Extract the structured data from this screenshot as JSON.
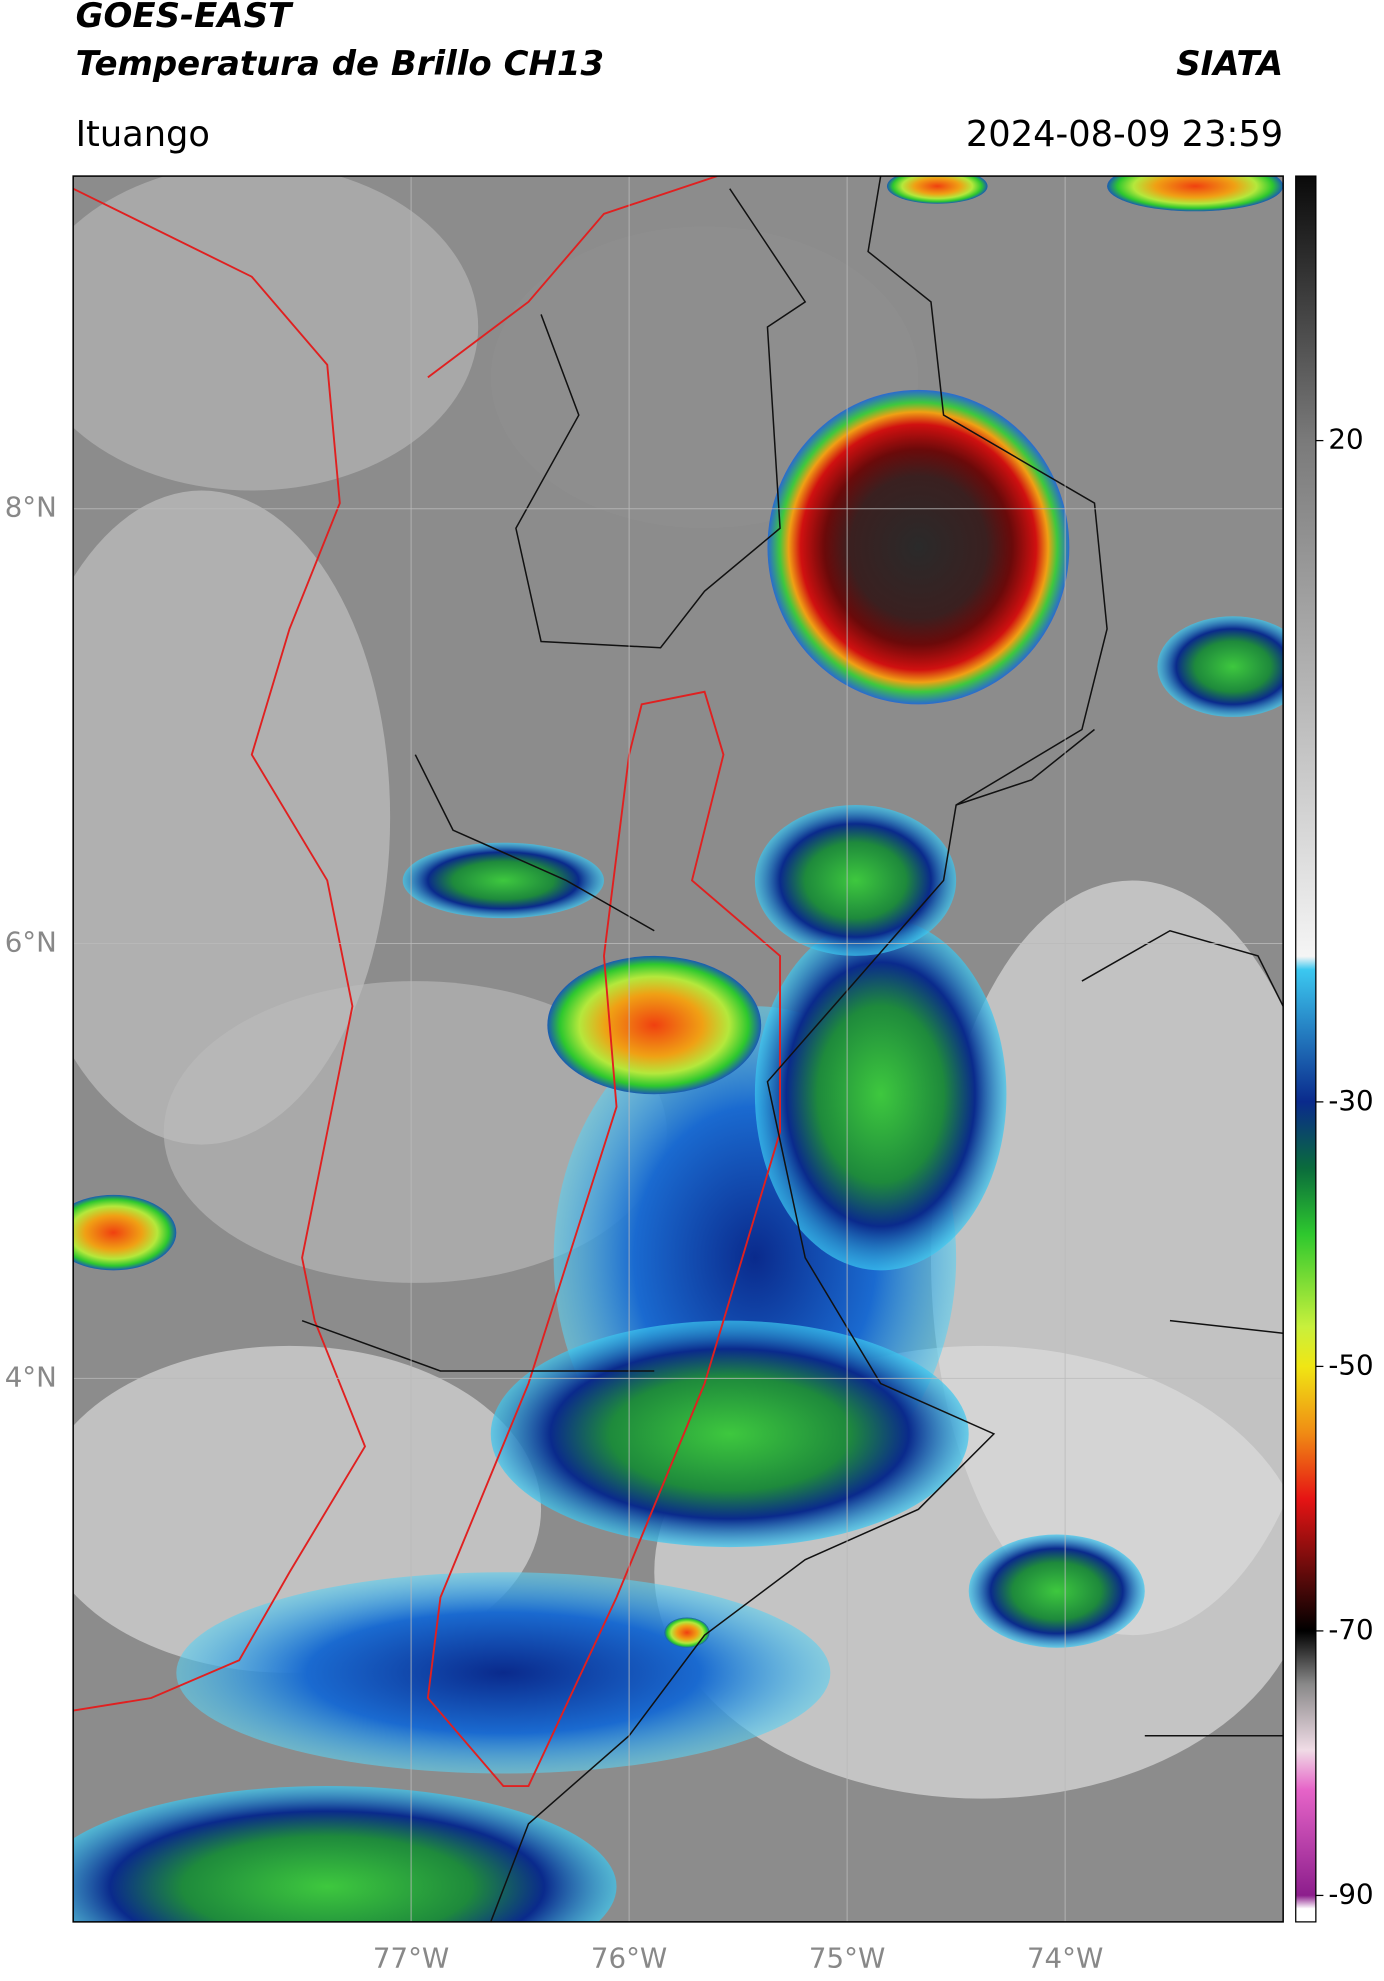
{
  "header": {
    "title_line1": "GOES-EAST",
    "title_line2": "Temperatura de Brillo CH13",
    "organization": "SIATA",
    "location": "Ituango",
    "datetime": "2024-08-09 23:59"
  },
  "map": {
    "xlim": [
      -78.55,
      -73
    ],
    "ylim": [
      1.5,
      9.53
    ],
    "lat_ticks": [
      {
        "value": 8,
        "label": "8°N"
      },
      {
        "value": 6,
        "label": "6°N"
      },
      {
        "value": 4,
        "label": "4°N"
      }
    ],
    "lon_ticks": [
      {
        "value": -77,
        "label": "77°W"
      },
      {
        "value": -76,
        "label": "76°W"
      },
      {
        "value": -75,
        "label": "75°W"
      },
      {
        "value": -74,
        "label": "74°W"
      }
    ]
  },
  "colorbar": {
    "lim": [
      -92,
      40
    ],
    "ticks": [
      20,
      -30,
      -50,
      -70,
      -90
    ],
    "stops": [
      {
        "value": 40,
        "color": "#0a0a0a"
      },
      {
        "value": 20,
        "color": "#7a7a7a"
      },
      {
        "value": -19,
        "color": "#f5f5f5"
      },
      {
        "value": -20,
        "color": "#3cc8f0"
      },
      {
        "value": -30,
        "color": "#0a2a8c"
      },
      {
        "value": -35,
        "color": "#0a6b3c"
      },
      {
        "value": -40,
        "color": "#2ec82e"
      },
      {
        "value": -47,
        "color": "#c8f03c"
      },
      {
        "value": -50,
        "color": "#f0e614"
      },
      {
        "value": -55,
        "color": "#f08c14"
      },
      {
        "value": -60,
        "color": "#e61414"
      },
      {
        "value": -66,
        "color": "#5a0a0a"
      },
      {
        "value": -70,
        "color": "#000000"
      },
      {
        "value": -74,
        "color": "#888888"
      },
      {
        "value": -79,
        "color": "#f0dce6"
      },
      {
        "value": -82,
        "color": "#e664c8"
      },
      {
        "value": -90,
        "color": "#8c1e8c"
      },
      {
        "value": -91,
        "color": "#ffffff"
      }
    ]
  }
}
